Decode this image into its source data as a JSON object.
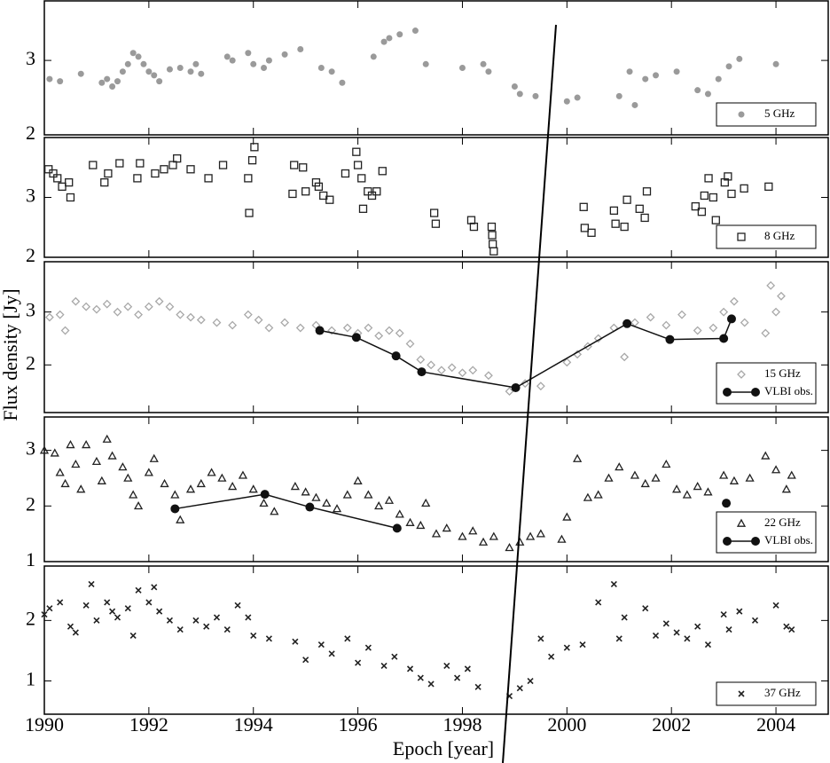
{
  "xlabel": "Epoch [year]",
  "ylabel": "Flux density [Jy]",
  "chart_data": [
    {
      "type": "scatter",
      "xlim": [
        1990,
        2005
      ],
      "xticks": [
        1990,
        1992,
        1994,
        1996,
        1998,
        2000,
        2002,
        2004
      ],
      "ylim": [
        2,
        3.8
      ],
      "yticks": [
        2,
        3
      ],
      "legend": "lower right",
      "series": [
        {
          "name": "5 GHz",
          "color": "#9a9a9a",
          "marker": "circle",
          "x": [
            1990.1,
            1990.3,
            1990.7,
            1991.1,
            1991.2,
            1991.3,
            1991.4,
            1991.5,
            1991.6,
            1991.7,
            1991.8,
            1991.9,
            1992.0,
            1992.1,
            1992.2,
            1992.4,
            1992.6,
            1992.8,
            1992.9,
            1993.0,
            1993.5,
            1993.6,
            1993.9,
            1994.0,
            1994.2,
            1994.3,
            1994.6,
            1994.9,
            1995.3,
            1995.5,
            1995.7,
            1996.3,
            1996.5,
            1996.6,
            1996.8,
            1997.1,
            1997.3,
            1998.0,
            1998.4,
            1998.5,
            1999.0,
            1999.1,
            1999.4,
            2000.0,
            2000.2,
            2001.0,
            2001.2,
            2001.3,
            2001.5,
            2001.7,
            2002.1,
            2002.5,
            2002.7,
            2002.9,
            2003.1,
            2003.3,
            2004.0
          ],
          "values": [
            2.75,
            2.72,
            2.82,
            2.7,
            2.75,
            2.65,
            2.72,
            2.85,
            2.95,
            3.1,
            3.05,
            2.95,
            2.85,
            2.8,
            2.72,
            2.88,
            2.9,
            2.85,
            2.95,
            2.82,
            3.05,
            3.0,
            3.1,
            2.95,
            2.9,
            3.0,
            3.08,
            3.15,
            2.9,
            2.85,
            2.7,
            3.05,
            3.25,
            3.3,
            3.35,
            3.4,
            2.95,
            2.9,
            2.95,
            2.85,
            2.65,
            2.55,
            2.52,
            2.45,
            2.5,
            2.52,
            2.85,
            2.4,
            2.75,
            2.8,
            2.85,
            2.6,
            2.55,
            2.75,
            2.92,
            3.02,
            2.95
          ]
        }
      ]
    },
    {
      "type": "scatter",
      "xlim": [
        1990,
        2005
      ],
      "xticks": [
        1990,
        1992,
        1994,
        1996,
        1998,
        2000,
        2002,
        2004
      ],
      "ylim": [
        2,
        4
      ],
      "yticks": [
        2,
        3
      ],
      "legend": "lower right",
      "series": [
        {
          "name": "8 GHz",
          "color": "#222222",
          "marker": "square",
          "x": [
            1990.08,
            1990.17,
            1990.25,
            1990.34,
            1990.47,
            1990.5,
            1990.93,
            1991.15,
            1991.22,
            1991.44,
            1991.78,
            1991.83,
            1992.12,
            1992.29,
            1992.46,
            1992.54,
            1992.8,
            1993.14,
            1993.42,
            1993.9,
            1993.92,
            1993.98,
            1994.02,
            1994.75,
            1994.78,
            1994.95,
            1995.0,
            1995.2,
            1995.25,
            1995.34,
            1995.46,
            1995.76,
            1995.97,
            1996.0,
            1996.07,
            1996.1,
            1996.19,
            1996.27,
            1996.36,
            1996.47,
            1997.46,
            1997.49,
            1998.17,
            1998.22,
            1998.56,
            1998.57,
            1998.58,
            1998.6,
            2000.32,
            2000.34,
            2000.47,
            2000.9,
            2000.93,
            2001.1,
            2001.15,
            2001.39,
            2001.49,
            2001.53,
            2002.46,
            2002.58,
            2002.63,
            2002.71,
            2002.8,
            2002.85,
            2003.02,
            2003.08,
            2003.15,
            2003.39,
            2003.86
          ],
          "values": [
            3.47,
            3.4,
            3.32,
            3.18,
            3.25,
            3.0,
            3.54,
            3.25,
            3.4,
            3.57,
            3.32,
            3.57,
            3.4,
            3.47,
            3.54,
            3.65,
            3.47,
            3.32,
            3.54,
            3.32,
            2.74,
            3.62,
            3.84,
            3.06,
            3.54,
            3.5,
            3.1,
            3.25,
            3.18,
            3.03,
            2.96,
            3.4,
            3.76,
            3.54,
            3.32,
            2.81,
            3.1,
            3.03,
            3.1,
            3.44,
            2.74,
            2.56,
            2.62,
            2.51,
            2.51,
            2.37,
            2.22,
            2.1,
            2.84,
            2.49,
            2.41,
            2.78,
            2.56,
            2.51,
            2.96,
            2.81,
            2.66,
            3.1,
            2.85,
            2.76,
            3.03,
            3.32,
            3.0,
            2.62,
            3.25,
            3.35,
            3.06,
            3.15,
            3.18
          ]
        }
      ]
    },
    {
      "type": "scatter",
      "xlim": [
        1990,
        2005
      ],
      "xticks": [
        1990,
        1992,
        1994,
        1996,
        1998,
        2000,
        2002,
        2004
      ],
      "ylim": [
        1.1,
        3.95
      ],
      "yticks": [
        2,
        3
      ],
      "legend": "lower right",
      "series": [
        {
          "name": "15 GHz",
          "color": "#a8a8a8",
          "marker": "diamond",
          "x": [
            1990.1,
            1990.3,
            1990.4,
            1990.6,
            1990.8,
            1991.0,
            1991.2,
            1991.4,
            1991.6,
            1991.8,
            1992.0,
            1992.2,
            1992.4,
            1992.6,
            1992.8,
            1993.0,
            1993.3,
            1993.6,
            1993.9,
            1994.1,
            1994.3,
            1994.6,
            1994.9,
            1995.2,
            1995.5,
            1995.8,
            1996.0,
            1996.2,
            1996.4,
            1996.6,
            1996.8,
            1997.0,
            1997.2,
            1997.4,
            1997.6,
            1997.8,
            1998.0,
            1998.2,
            1998.5,
            1998.9,
            1999.2,
            1999.5,
            2000.0,
            2000.2,
            2000.4,
            2000.6,
            2000.9,
            2001.1,
            2001.3,
            2001.6,
            2001.9,
            2002.2,
            2002.5,
            2002.8,
            2003.0,
            2003.2,
            2003.4,
            2003.8,
            2003.9,
            2004.0,
            2004.1
          ],
          "values": [
            2.9,
            2.95,
            2.65,
            3.2,
            3.1,
            3.05,
            3.15,
            3.0,
            3.1,
            2.95,
            3.1,
            3.2,
            3.1,
            2.95,
            2.9,
            2.85,
            2.8,
            2.75,
            2.95,
            2.85,
            2.7,
            2.8,
            2.7,
            2.75,
            2.65,
            2.7,
            2.6,
            2.7,
            2.55,
            2.65,
            2.6,
            2.4,
            2.1,
            2.0,
            1.9,
            1.95,
            1.85,
            1.9,
            1.8,
            1.5,
            1.65,
            1.6,
            2.05,
            2.2,
            2.35,
            2.5,
            2.7,
            2.15,
            2.8,
            2.9,
            2.75,
            2.95,
            2.65,
            2.7,
            3.0,
            3.2,
            2.8,
            2.6,
            3.5,
            3.0,
            3.3
          ]
        },
        {
          "name": "VLBI obs.",
          "color": "#111111",
          "marker": "dot",
          "line": true,
          "x": [
            1995.27,
            1995.97,
            1996.73,
            1997.22,
            1999.02,
            2001.15,
            2001.97,
            2003.0,
            2003.15
          ],
          "values": [
            2.65,
            2.52,
            2.17,
            1.87,
            1.57,
            2.78,
            2.48,
            2.5,
            2.87
          ]
        }
      ]
    },
    {
      "type": "scatter",
      "xlim": [
        1990,
        2005
      ],
      "xticks": [
        1990,
        1992,
        1994,
        1996,
        1998,
        2000,
        2002,
        2004
      ],
      "ylim": [
        1,
        3.6
      ],
      "yticks": [
        1,
        2,
        3
      ],
      "legend": "lower right",
      "series": [
        {
          "name": "22 GHz",
          "color": "#222222",
          "marker": "triangle",
          "x": [
            1990.0,
            1990.2,
            1990.3,
            1990.4,
            1990.5,
            1990.6,
            1990.7,
            1990.8,
            1991.0,
            1991.1,
            1991.2,
            1991.3,
            1991.5,
            1991.6,
            1991.7,
            1991.8,
            1992.0,
            1992.1,
            1992.3,
            1992.5,
            1992.6,
            1992.8,
            1993.0,
            1993.2,
            1993.4,
            1993.6,
            1993.8,
            1994.0,
            1994.2,
            1994.4,
            1994.8,
            1995.0,
            1995.2,
            1995.4,
            1995.6,
            1995.8,
            1996.0,
            1996.2,
            1996.4,
            1996.6,
            1996.8,
            1997.0,
            1997.2,
            1997.3,
            1997.5,
            1997.7,
            1998.0,
            1998.2,
            1998.4,
            1998.6,
            1998.9,
            1999.1,
            1999.3,
            1999.5,
            1999.9,
            2000.0,
            2000.2,
            2000.4,
            2000.6,
            2000.8,
            2001.0,
            2001.3,
            2001.5,
            2001.7,
            2001.9,
            2002.1,
            2002.3,
            2002.5,
            2002.7,
            2003.0,
            2003.2,
            2003.5,
            2003.8,
            2004.0,
            2004.2,
            2004.3
          ],
          "values": [
            3.0,
            2.95,
            2.6,
            2.4,
            3.1,
            2.75,
            2.3,
            3.1,
            2.8,
            2.45,
            3.2,
            2.9,
            2.7,
            2.5,
            2.2,
            2.0,
            2.6,
            2.85,
            2.4,
            2.2,
            1.75,
            2.3,
            2.4,
            2.6,
            2.5,
            2.35,
            2.55,
            2.3,
            2.05,
            1.9,
            2.35,
            2.25,
            2.15,
            2.05,
            1.95,
            2.2,
            2.45,
            2.2,
            2.0,
            2.1,
            1.85,
            1.7,
            1.65,
            2.05,
            1.5,
            1.6,
            1.45,
            1.55,
            1.35,
            1.45,
            1.25,
            1.35,
            1.45,
            1.5,
            1.4,
            1.8,
            2.85,
            2.15,
            2.2,
            2.5,
            2.7,
            2.55,
            2.4,
            2.5,
            2.75,
            2.3,
            2.2,
            2.35,
            2.25,
            2.55,
            2.45,
            2.5,
            2.9,
            2.65,
            2.3,
            2.55
          ]
        },
        {
          "name": "VLBI obs.",
          "color": "#111111",
          "marker": "dot",
          "line": true,
          "x": [
            1992.5,
            1994.22,
            1995.08,
            1996.75,
            null,
            2003.05
          ],
          "values": [
            1.95,
            2.21,
            1.98,
            1.6,
            null,
            2.05
          ]
        }
      ]
    },
    {
      "type": "scatter",
      "xlim": [
        1990,
        2005
      ],
      "xticks": [
        1990,
        1992,
        1994,
        1996,
        1998,
        2000,
        2002,
        2004
      ],
      "ylim": [
        0.45,
        2.9
      ],
      "yticks": [
        1,
        2
      ],
      "legend": "lower right",
      "series": [
        {
          "name": "37 GHz",
          "color": "#222222",
          "marker": "x",
          "x": [
            1990.0,
            1990.1,
            1990.3,
            1990.5,
            1990.6,
            1990.8,
            1990.9,
            1991.0,
            1991.2,
            1991.3,
            1991.4,
            1991.6,
            1991.7,
            1991.8,
            1992.0,
            1992.1,
            1992.2,
            1992.4,
            1992.6,
            1992.9,
            1993.1,
            1993.3,
            1993.5,
            1993.7,
            1993.9,
            1994.0,
            1994.3,
            1994.8,
            1995.0,
            1995.3,
            1995.5,
            1995.8,
            1996.0,
            1996.2,
            1996.5,
            1996.7,
            1997.0,
            1997.2,
            1997.4,
            1997.7,
            1997.9,
            1998.1,
            1998.3,
            1998.9,
            1999.1,
            1999.3,
            1999.5,
            1999.7,
            2000.0,
            2000.3,
            2000.6,
            2000.9,
            2001.0,
            2001.1,
            2001.5,
            2001.7,
            2001.9,
            2002.1,
            2002.3,
            2002.5,
            2002.7,
            2003.0,
            2003.1,
            2003.3,
            2003.6,
            2004.0,
            2004.2,
            2004.3
          ],
          "values": [
            2.1,
            2.2,
            2.3,
            1.9,
            1.8,
            2.25,
            2.6,
            2.0,
            2.3,
            2.15,
            2.05,
            2.2,
            1.75,
            2.5,
            2.3,
            2.55,
            2.15,
            2.0,
            1.85,
            2.0,
            1.9,
            2.05,
            1.85,
            2.25,
            2.05,
            1.75,
            1.7,
            1.65,
            1.35,
            1.6,
            1.45,
            1.7,
            1.3,
            1.55,
            1.25,
            1.4,
            1.2,
            1.05,
            0.95,
            1.25,
            1.05,
            1.2,
            0.9,
            0.75,
            0.88,
            1.0,
            1.7,
            1.4,
            1.55,
            1.6,
            2.3,
            2.6,
            1.7,
            2.05,
            2.2,
            1.75,
            1.95,
            1.8,
            1.7,
            1.9,
            1.6,
            2.1,
            1.85,
            2.15,
            2.0,
            2.25,
            1.9,
            1.85
          ]
        }
      ]
    }
  ]
}
